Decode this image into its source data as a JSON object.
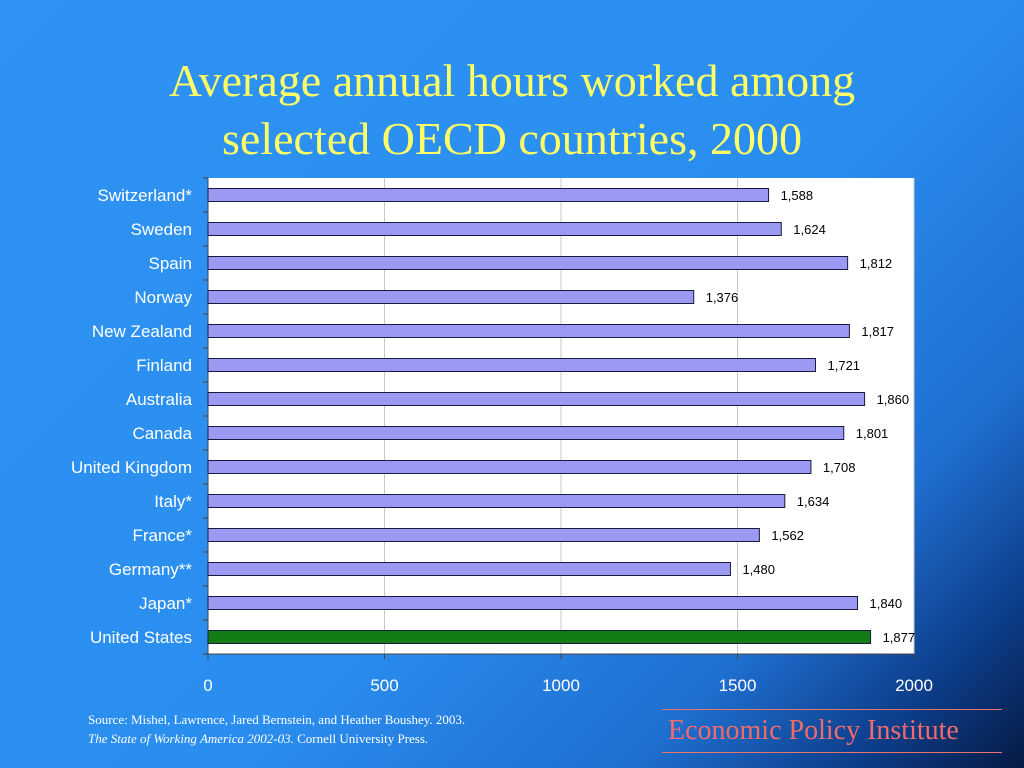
{
  "title_line1": "Average annual hours worked among",
  "title_line2": "selected OECD countries, 2000",
  "source_line1": "Source:  Mishel, Lawrence, Jared Bernstein, and Heather Boushey. 2003.",
  "source_line2_italic": "The State of Working America 2002-03.",
  "source_line2_rest": " Cornell University Press.",
  "brand": "Economic Policy Institute",
  "colors": {
    "bar": "#9a9af2",
    "highlight": "#147c14",
    "title": "#ffff66",
    "brand": "#f26b6b"
  },
  "chart_data": {
    "type": "bar",
    "orientation": "horizontal",
    "categories": [
      "Switzerland*",
      "Sweden",
      "Spain",
      "Norway",
      "New Zealand",
      "Finland",
      "Australia",
      "Canada",
      "United Kingdom",
      "Italy*",
      "France*",
      "Germany**",
      "Japan*",
      "United States"
    ],
    "values": [
      1588,
      1624,
      1812,
      1376,
      1817,
      1721,
      1860,
      1801,
      1708,
      1634,
      1562,
      1480,
      1840,
      1877
    ],
    "value_labels": [
      "1,588",
      "1,624",
      "1,812",
      "1,376",
      "1,817",
      "1,721",
      "1,860",
      "1,801",
      "1,708",
      "1,634",
      "1,562",
      "1,480",
      "1,840",
      "1,877"
    ],
    "highlight_category": "United States",
    "xlim": [
      0,
      2000
    ],
    "xticks": [
      0,
      500,
      1000,
      1500,
      2000
    ],
    "xtick_labels": [
      "0",
      "500",
      "1000",
      "1500",
      "2000"
    ],
    "grid": true
  }
}
